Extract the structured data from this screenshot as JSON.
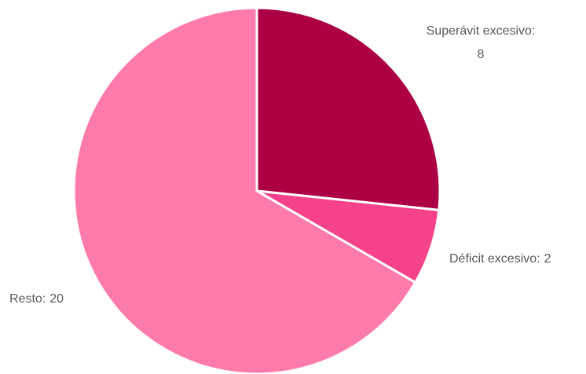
{
  "chart_data": {
    "type": "pie",
    "categories": [
      "Superávit excesivo:",
      "Déficit excesivo:",
      "Resto:"
    ],
    "values": [
      8,
      2,
      20
    ],
    "colors": [
      "#ad0044",
      "#f5428a",
      "#fd7bab"
    ]
  }
}
